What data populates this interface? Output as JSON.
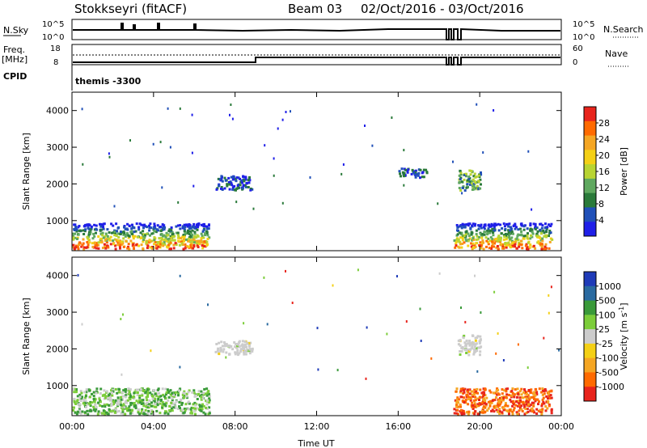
{
  "header": {
    "station": "Stokkseyri (fitACF)",
    "beam": "Beam 03",
    "date_range": "02/Oct/2016 - 03/Oct/2016"
  },
  "noise_panel": {
    "left_label": "N.Sky",
    "left_top_tick": "10^5",
    "left_bottom_tick": "10^0",
    "right_label": "N.Search",
    "right_top_tick": "10^5",
    "right_bottom_tick": "10^0"
  },
  "freq_panel": {
    "left_label_1": "Freq.",
    "left_label_2": "[MHz]",
    "left_top_tick": "18",
    "left_bottom_tick": "8",
    "right_label": "Nave",
    "right_top_tick": "60",
    "right_bottom_tick": "0"
  },
  "cpid_panel": {
    "label": "CPID",
    "value": "themis -3300"
  },
  "colors": {
    "power_scale": [
      "#1f1fe8",
      "#2050b8",
      "#2a7a3a",
      "#5fa85f",
      "#b8d432",
      "#f4d016",
      "#f5a623",
      "#ff6a00",
      "#e8241c"
    ],
    "velocity_scale": [
      "#e8241c",
      "#ff6a00",
      "#f5a623",
      "#f4d016",
      "#cccccc",
      "#7ccd3a",
      "#3a9a3a",
      "#2a6aa0",
      "#1f3bb8"
    ]
  },
  "chart_data": [
    {
      "type": "heatmap",
      "panel": "power",
      "ylabel": "Slant Range [km]",
      "ylim": [
        180,
        4500
      ],
      "y_ticks": [
        "1000",
        "2000",
        "3000",
        "4000"
      ],
      "colorbar_label": "Power [dB]",
      "colorbar_ticks": [
        "4",
        "8",
        "12",
        "16",
        "20",
        "24",
        "28"
      ],
      "colorbar_range": [
        0,
        32
      ],
      "regions": [
        {
          "t0": 0.0,
          "t1": 6.7,
          "r0": 250,
          "r1": 950,
          "level": "high-mixed"
        },
        {
          "t0": 7.0,
          "t1": 8.8,
          "r0": 1850,
          "r1": 2250,
          "level": "low"
        },
        {
          "t0": 16.0,
          "t1": 17.4,
          "r0": 2200,
          "r1": 2450,
          "level": "low"
        },
        {
          "t0": 18.9,
          "t1": 20.0,
          "r0": 1850,
          "r1": 2400,
          "level": "mid"
        },
        {
          "t0": 18.7,
          "t1": 23.5,
          "r0": 250,
          "r1": 950,
          "level": "high-mixed"
        }
      ]
    },
    {
      "type": "heatmap",
      "panel": "velocity",
      "ylabel": "Slant Range [km]",
      "ylim": [
        180,
        4500
      ],
      "y_ticks": [
        "1000",
        "2000",
        "3000",
        "4000"
      ],
      "x_ticks": [
        "00:00",
        "04:00",
        "08:00",
        "12:00",
        "16:00",
        "20:00",
        "00:00"
      ],
      "xlabel": "Time UT",
      "colorbar_label": "Velocity [m s-1]",
      "colorbar_ticks": [
        "1000",
        "500",
        "100",
        "25",
        "-25",
        "-100",
        "-500",
        "-1000"
      ],
      "regions": [
        {
          "t0": 0.0,
          "t1": 6.7,
          "r0": 250,
          "r1": 950,
          "velocity": "slightly positive / near zero"
        },
        {
          "t0": 7.0,
          "t1": 8.8,
          "r0": 1850,
          "r1": 2250,
          "velocity": "near zero"
        },
        {
          "t0": 18.9,
          "t1": 20.0,
          "r0": 1850,
          "r1": 2400,
          "velocity": "near zero"
        },
        {
          "t0": 18.7,
          "t1": 23.5,
          "r0": 250,
          "r1": 950,
          "velocity": "negative (-100 to -500)"
        }
      ]
    }
  ]
}
